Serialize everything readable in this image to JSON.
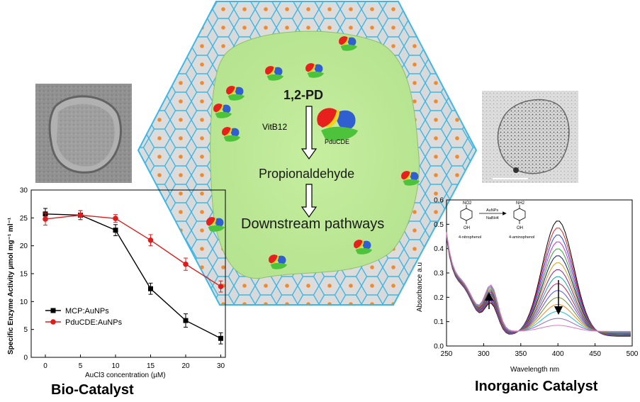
{
  "center": {
    "step1": "1,2-PD",
    "cofactor": "VitB12",
    "enzyme_label": "PduCDE",
    "step2": "Propionaldehyde",
    "step3": "Downstream pathways"
  },
  "captions": {
    "left": "Bio-Catalyst",
    "right": "Inorganic Catalyst"
  },
  "colors": {
    "shell_line": "#3bb8e8",
    "shell_fill": "#d9d9d9",
    "interior": "#c2eb9e",
    "dot": "#f08a2c",
    "series1": "#000000",
    "series2": "#e01b1b"
  },
  "reaction": {
    "reactant": "4-nitrophenol",
    "product": "4-aminophenol",
    "reagent_top": "AuNPs",
    "reagent_bottom": "NaBH4",
    "nitro_group": "NO2",
    "amino_group": "NH2",
    "hydroxyl": "OH"
  },
  "chart_data": [
    {
      "type": "line",
      "xlabel": "AuCl3 concentration (µM)",
      "ylabel": "Specific Enzyme Activity µmol mg⁻¹ ml⁻¹",
      "x": [
        0,
        5,
        10,
        15,
        20,
        30
      ],
      "xticks": [
        "0",
        "5",
        "10",
        "15",
        "20",
        "30"
      ],
      "yticks": [
        "0",
        "5",
        "10",
        "15",
        "20",
        "25",
        "30"
      ],
      "ylim": [
        0,
        30
      ],
      "legend_position": "bottom-left",
      "series": [
        {
          "name": "MCP:AuNPs",
          "color": "#000000",
          "marker": "square",
          "values": [
            25.7,
            25.5,
            22.8,
            12.3,
            6.6,
            3.4
          ],
          "errors": [
            1.0,
            0.8,
            1.0,
            1.0,
            1.2,
            1.0
          ]
        },
        {
          "name": "PduCDE:AuNPs",
          "color": "#e01b1b",
          "marker": "circle",
          "values": [
            24.8,
            25.5,
            24.9,
            21.0,
            16.7,
            12.7
          ],
          "errors": [
            1.1,
            0.8,
            0.7,
            1.0,
            1.1,
            1.0
          ]
        }
      ]
    },
    {
      "type": "line",
      "xlabel": "Wavelength nm",
      "ylabel": "Absorbance a.u",
      "xticks": [
        "250",
        "300",
        "350",
        "400",
        "450",
        "500"
      ],
      "yticks": [
        "0.0",
        "0.1",
        "0.2",
        "0.3",
        "0.4",
        "0.5",
        "0.6"
      ],
      "xlim": [
        250,
        500
      ],
      "ylim": [
        0.0,
        0.6
      ],
      "annotations": [
        "isosbestic-like rise near 310 nm (arrow up)",
        "decrease at 400 nm (arrow down)"
      ],
      "series_count": 16,
      "series_peak_400": [
        0.535,
        0.505,
        0.475,
        0.445,
        0.415,
        0.385,
        0.355,
        0.325,
        0.295,
        0.265,
        0.235,
        0.205,
        0.175,
        0.145,
        0.115,
        0.085
      ],
      "series_colors": [
        "#000000",
        "#e32020",
        "#1f4be0",
        "#d12ad1",
        "#2aa82a",
        "#0f0f80",
        "#d4a015",
        "#8a1f8a",
        "#18a0a0",
        "#c02050",
        "#5050ff",
        "#6b8e23",
        "#ff7f0e",
        "#17becf",
        "#9467bd",
        "#e377c2"
      ]
    }
  ]
}
